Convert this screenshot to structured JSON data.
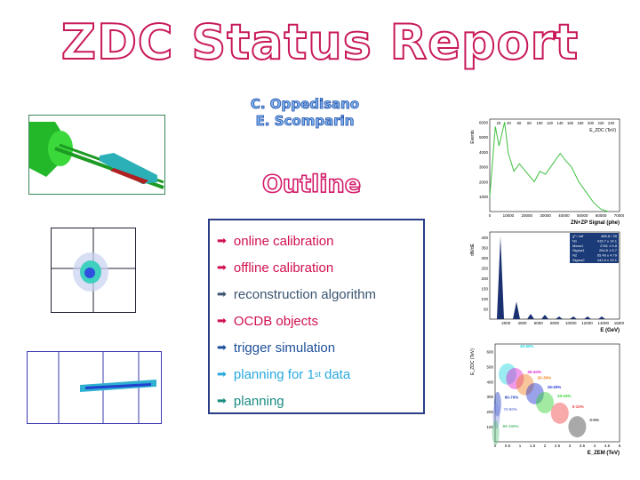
{
  "title": "ZDC Status Report",
  "authors": [
    "C. Oppedisano",
    "E. Scomparin"
  ],
  "outline_heading": "Outline",
  "outline_items": [
    {
      "label": "online calibration",
      "color": "#d0114e"
    },
    {
      "label": "offline calibration",
      "color": "#d0114e"
    },
    {
      "label": "reconstruction algorithm",
      "color": "#3b5470"
    },
    {
      "label": "OCDB objects",
      "color": "#d0114e"
    },
    {
      "label": "trigger simulation",
      "color": "#1f4f9a"
    },
    {
      "label": "planning for 1",
      "sup": "st",
      "label_after": " data",
      "color": "#2aa9de"
    },
    {
      "label": "planning",
      "color": "#1a8c80"
    }
  ],
  "arrow_icon": "➡",
  "chart_data": [
    {
      "type": "line",
      "ylabel": "Events",
      "xlabel": "ZN+ZP Signal (phe)",
      "x2label": "E_ZDC (TeV)",
      "xticks": [
        "0",
        "10000",
        "20000",
        "30000",
        "40000",
        "50000",
        "60000",
        "70000"
      ],
      "x2ticks": [
        "20",
        "40",
        "60",
        "80",
        "100",
        "120",
        "140",
        "160",
        "180",
        "200",
        "220",
        "240"
      ],
      "yticks": [
        "1000",
        "2000",
        "3000",
        "4000",
        "5000",
        "6000"
      ],
      "x": [
        0,
        3000,
        5000,
        8000,
        10000,
        13000,
        16000,
        20000,
        24000,
        27000,
        30000,
        34000,
        38000,
        41000,
        44000,
        48000,
        52000,
        56000,
        60000,
        64000
      ],
      "y": [
        1000,
        5700,
        4400,
        6000,
        3900,
        2700,
        3200,
        2600,
        2000,
        2700,
        2500,
        3200,
        3900,
        3400,
        3000,
        2000,
        1300,
        600,
        150,
        0
      ]
    },
    {
      "type": "bar",
      "ylabel": "dN/dE",
      "xlabel": "E (GeV)",
      "xticks": [
        "2000",
        "4000",
        "6000",
        "8000",
        "10000",
        "12000",
        "14000",
        "16000"
      ],
      "yticks": [
        "50",
        "100",
        "150",
        "200",
        "250",
        "300",
        "350",
        "400"
      ],
      "fit_stats": [
        [
          "χ² / ndf",
          "685.8 / 39"
        ],
        [
          "N1",
          "415.7 ± 14.1"
        ],
        [
          "Mean1",
          "2781 ± 5.8"
        ],
        [
          "Sigma1",
          "264.6 ± 5.7"
        ],
        [
          "N2",
          "65.46 ± 4.79"
        ],
        [
          "Sigma2",
          "441.6 ± 23.1"
        ]
      ]
    },
    {
      "type": "scatter",
      "ylabel": "E_ZDC (TeV)",
      "xlabel": "E_ZEM (TeV)",
      "xticks": [
        "0",
        "0.5",
        "1",
        "1.5",
        "2",
        "2.5",
        "3",
        "3.5",
        "4",
        "4.5",
        "5"
      ],
      "yticks": [
        "100",
        "200",
        "300",
        "400",
        "500",
        "600"
      ],
      "classes": [
        {
          "label": "40-50%",
          "color": "#22d4e0",
          "x": 0.5,
          "y": 450
        },
        {
          "label": "30-40%",
          "color": "#e020d0",
          "x": 0.8,
          "y": 420
        },
        {
          "label": "20-30%",
          "color": "#f08020",
          "x": 1.2,
          "y": 380
        },
        {
          "label": "15-20%",
          "color": "#2030d0",
          "x": 1.6,
          "y": 320
        },
        {
          "label": "10-15%",
          "color": "#30d030",
          "x": 2.0,
          "y": 260
        },
        {
          "label": "5-10%",
          "color": "#f04040",
          "x": 2.6,
          "y": 190
        },
        {
          "label": "0-5%",
          "color": "#404040",
          "x": 3.3,
          "y": 100
        },
        {
          "label": "60-70%",
          "color": "#2040c0",
          "x": 0.1,
          "y": 250
        },
        {
          "label": "70-80%",
          "color": "#8090e0",
          "x": 0.05,
          "y": 170
        },
        {
          "label": "80-100%",
          "color": "#60c080",
          "x": 0.02,
          "y": 60
        }
      ]
    }
  ]
}
